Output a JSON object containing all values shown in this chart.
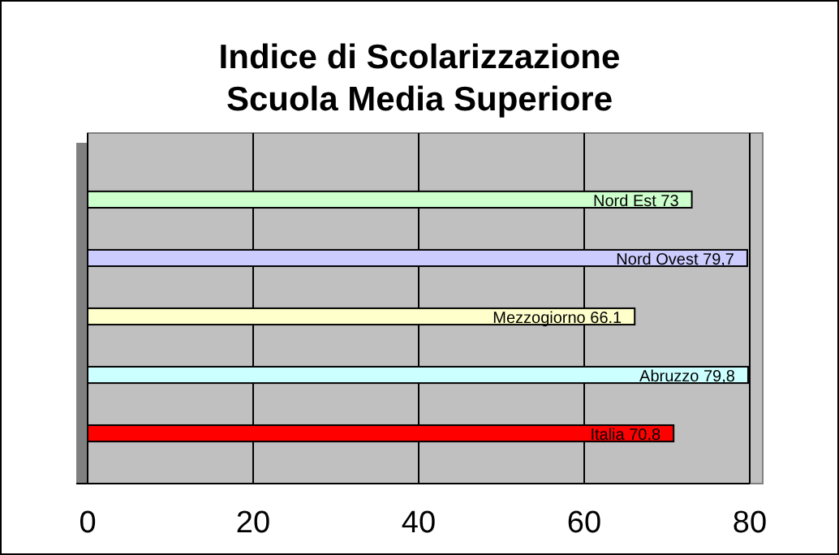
{
  "chart_data": {
    "type": "bar",
    "orientation": "horizontal",
    "title": "Indice di Scolarizzazione\nScuola Media Superiore",
    "categories": [
      "Nord Est",
      "Nord Ovest",
      "Mezzogiorno",
      "Abruzzo",
      "Italia"
    ],
    "values": [
      73,
      79.7,
      66.1,
      79.8,
      70.8
    ],
    "value_labels": [
      "73",
      "79,7",
      "66.1",
      "79,8",
      "70,8"
    ],
    "colors": [
      "#ccffcc",
      "#ccccff",
      "#ffffcc",
      "#ccffff",
      "#ff0000"
    ],
    "xlim": [
      0,
      80
    ],
    "xticks": [
      0,
      20,
      40,
      60,
      80
    ],
    "grid": "x"
  }
}
